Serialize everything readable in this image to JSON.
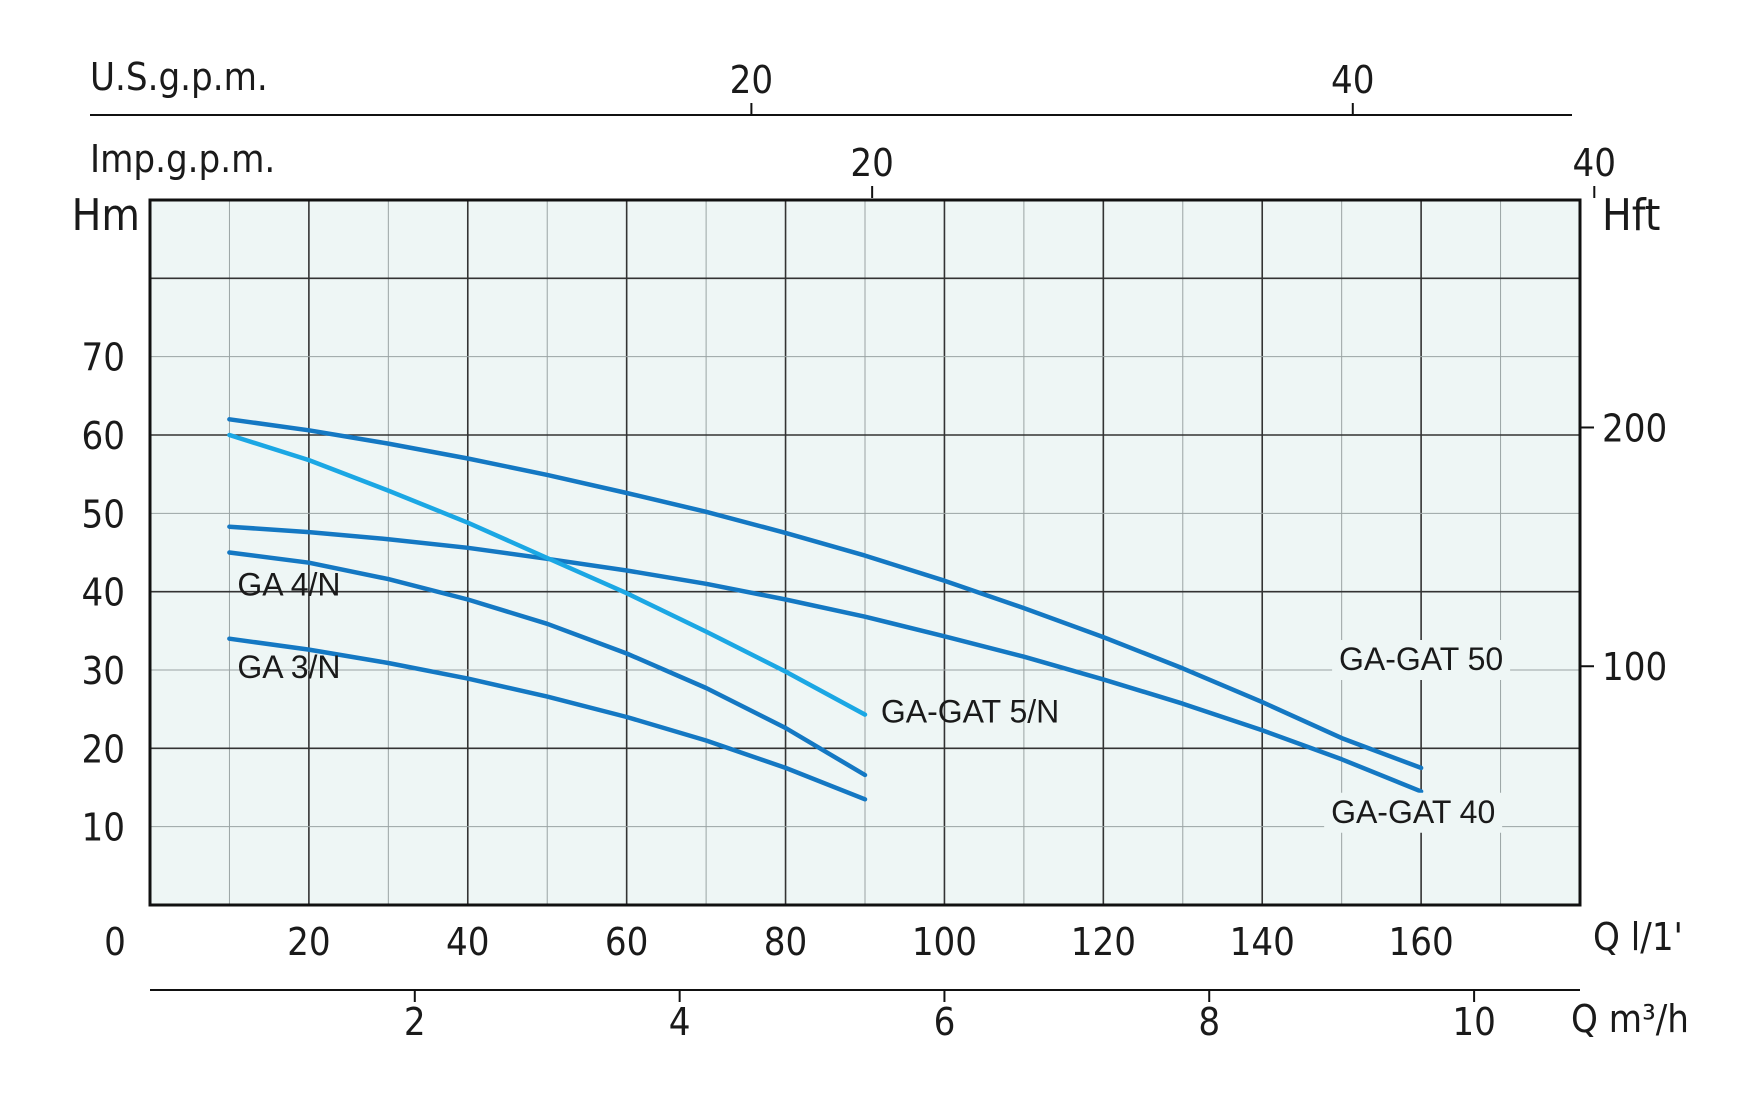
{
  "chart_data": {
    "type": "line",
    "title": "",
    "xlabel": "Q l/1'",
    "ylabel": "Hm",
    "ylabel_right": "Hft",
    "xlim": [
      0,
      180
    ],
    "ylim": [
      0,
      90
    ],
    "grid": true,
    "x_ticks": [
      "0",
      "20",
      "40",
      "60",
      "80",
      "100",
      "120",
      "140",
      "160"
    ],
    "y_ticks": [
      "10",
      "20",
      "30",
      "40",
      "50",
      "60",
      "70"
    ],
    "secondary_axes": {
      "right_hft": {
        "label": "Hft",
        "ticks": [
          {
            "label": "100",
            "value_m": 30.48
          },
          {
            "label": "200",
            "value_m": 60.96
          }
        ]
      },
      "bottom_m3h": {
        "label": "Q m³/h",
        "ticks": [
          {
            "label": "2",
            "value_lpm": 33.33
          },
          {
            "label": "4",
            "value_lpm": 66.67
          },
          {
            "label": "6",
            "value_lpm": 100.0
          },
          {
            "label": "8",
            "value_lpm": 133.33
          },
          {
            "label": "10",
            "value_lpm": 166.67
          }
        ]
      },
      "top_usgpm": {
        "label": "U.S.g.p.m.",
        "ticks": [
          {
            "label": "20",
            "value_lpm": 75.7
          },
          {
            "label": "40",
            "value_lpm": 151.4
          }
        ]
      },
      "top_impgpm": {
        "label": "Imp.g.p.m.",
        "ticks": [
          {
            "label": "20",
            "value_lpm": 90.9
          },
          {
            "label": "40",
            "value_lpm": 181.8
          }
        ]
      }
    },
    "series": [
      {
        "name": "GA-GAT 50",
        "color": "#1478c3",
        "label_at": [
          160,
          30
        ],
        "x": [
          10,
          20,
          30,
          40,
          50,
          60,
          70,
          80,
          90,
          100,
          110,
          120,
          130,
          140,
          150,
          160
        ],
        "y": [
          62.0,
          60.6,
          58.9,
          57.0,
          54.9,
          52.6,
          50.2,
          47.5,
          44.6,
          41.4,
          37.9,
          34.2,
          30.2,
          25.9,
          21.3,
          17.5
        ]
      },
      {
        "name": "GA-GAT 40",
        "color": "#1478c3",
        "label_at": [
          159,
          10.5
        ],
        "x": [
          10,
          20,
          30,
          40,
          50,
          60,
          70,
          80,
          90,
          100,
          110,
          120,
          130,
          140,
          150,
          160
        ],
        "y": [
          48.3,
          47.6,
          46.7,
          45.6,
          44.2,
          42.7,
          41.0,
          39.0,
          36.8,
          34.3,
          31.7,
          28.8,
          25.7,
          22.3,
          18.6,
          14.5
        ]
      },
      {
        "name": "GA-GAT 5/N",
        "color": "#1ba7e4",
        "label_at": [
          92,
          23.3
        ],
        "x": [
          10,
          20,
          30,
          40,
          50,
          60,
          70,
          80,
          90
        ],
        "y": [
          60.0,
          56.8,
          52.9,
          48.8,
          44.3,
          39.8,
          34.9,
          29.8,
          24.3
        ]
      },
      {
        "name": "GA 4/N",
        "color": "#1478c3",
        "label_at": [
          11,
          39.5
        ],
        "x": [
          10,
          20,
          30,
          40,
          50,
          60,
          70,
          80,
          90
        ],
        "y": [
          45.0,
          43.7,
          41.6,
          39.0,
          35.9,
          32.1,
          27.7,
          22.6,
          16.6
        ]
      },
      {
        "name": "GA 3/N",
        "color": "#1478c3",
        "label_at": [
          11,
          29
        ],
        "x": [
          10,
          20,
          30,
          40,
          50,
          60,
          70,
          80,
          90
        ],
        "y": [
          34.0,
          32.6,
          30.9,
          28.9,
          26.6,
          24.0,
          21.0,
          17.5,
          13.5
        ]
      }
    ]
  }
}
